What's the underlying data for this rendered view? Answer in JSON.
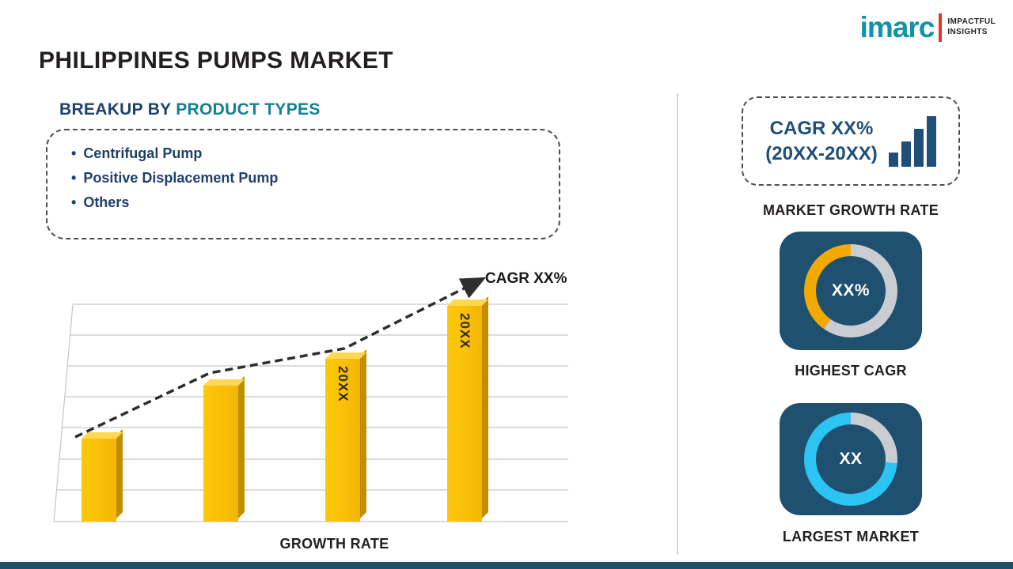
{
  "logo": {
    "brand": "imarc",
    "tagline1": "IMPACTFUL",
    "tagline2": "INSIGHTS"
  },
  "title": "PHILIPPINES PUMPS MARKET",
  "breakup": {
    "heading_prefix": "BREAKUP BY ",
    "heading_highlight": "PRODUCT TYPES",
    "items": [
      "Centrifugal Pump",
      "Positive Displacement Pump",
      "Others"
    ]
  },
  "chart_data": {
    "type": "bar",
    "title": "",
    "xlabel": "GROWTH RATE",
    "ylabel": "",
    "categories": [
      "",
      "",
      "20XX",
      "20XX"
    ],
    "values": [
      25,
      41,
      49,
      65
    ],
    "bar_labels": [
      "",
      "",
      "20XX",
      "20XX"
    ],
    "ylim": [
      0,
      70
    ],
    "grid": true,
    "legend": false,
    "annotation": "CAGR XX%",
    "bar_color": "#FBBC05",
    "trend": "dashed ascending arrow"
  },
  "right_panel": {
    "cagr_box": {
      "line1": "CAGR XX%",
      "line2": "(20XX-20XX)"
    },
    "growth_label": "MARKET GROWTH RATE",
    "highest_cagr": {
      "value": "XX%",
      "caption": "HIGHEST CAGR",
      "ring_color": "#F2A900",
      "ring_track": "#C9CDD2",
      "ring_start_deg": 215
    },
    "largest_market": {
      "value": "XX",
      "caption": "LARGEST MARKET",
      "ring_color": "#2BC4F3",
      "ring_track": "#C9CDD2",
      "ring_start_deg": 95
    }
  },
  "colors": {
    "accent_teal": "#0F93A7",
    "heading_teal": "#12808F",
    "dark_navy": "#1F4E79",
    "tile_navy": "#20506F",
    "bar_gold": "#FBBC05",
    "bar_side": "#C28E00",
    "footer_navy": "#1D4E6B",
    "logo_red": "#E63323"
  }
}
